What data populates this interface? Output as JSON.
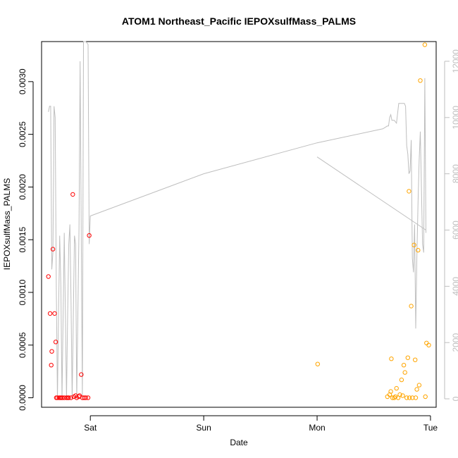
{
  "chart_data": {
    "type": "scatter",
    "title": "ATOM1 Northeast_Pacific IEPOXsulfMass_PALMS",
    "xlabel": "Date",
    "ylabel": "IEPOXsulfMass_PALMS",
    "x_axis": {
      "range_days": [
        -0.43,
        3.05
      ],
      "ticks": [
        {
          "value": 0,
          "label": "Sat"
        },
        {
          "value": 1,
          "label": "Sun"
        },
        {
          "value": 2,
          "label": "Mon"
        },
        {
          "value": 3,
          "label": "Tue"
        }
      ]
    },
    "y_left": {
      "range": [
        -9e-05,
        0.00338
      ],
      "ticks": [
        {
          "value": 0.0,
          "label": "0.0000"
        },
        {
          "value": 0.0005,
          "label": "0.0005"
        },
        {
          "value": 0.001,
          "label": "0.0010"
        },
        {
          "value": 0.0015,
          "label": "0.0015"
        },
        {
          "value": 0.002,
          "label": "0.0020"
        },
        {
          "value": 0.0025,
          "label": "0.0025"
        },
        {
          "value": 0.003,
          "label": "0.0030"
        }
      ]
    },
    "y_right": {
      "range": [
        -300,
        12700
      ],
      "ticks": [
        {
          "value": 0,
          "label": "0"
        },
        {
          "value": 2000,
          "label": "2000"
        },
        {
          "value": 4000,
          "label": "4000"
        },
        {
          "value": 6000,
          "label": "6000"
        },
        {
          "value": 8000,
          "label": "8000"
        },
        {
          "value": 10000,
          "label": "10000"
        },
        {
          "value": 12000,
          "label": "12000"
        }
      ]
    },
    "colors": {
      "series_red": "#ff0000",
      "series_orange": "#ffa500",
      "line": "#bebebe"
    },
    "series": [
      {
        "color": "#ff0000",
        "points": [
          [
            -0.37,
            0.00115
          ],
          [
            -0.355,
            0.0008
          ],
          [
            -0.345,
            0.00031
          ],
          [
            -0.34,
            0.00044
          ],
          [
            -0.33,
            0.00141
          ],
          [
            -0.315,
            0.0008
          ],
          [
            -0.305,
            0.00053
          ],
          [
            -0.3,
            0.0
          ],
          [
            -0.29,
            0.0
          ],
          [
            -0.275,
            0.0
          ],
          [
            -0.265,
            0.0
          ],
          [
            -0.255,
            0.0
          ],
          [
            -0.245,
            0.0
          ],
          [
            -0.23,
            0.0
          ],
          [
            -0.21,
            0.0
          ],
          [
            -0.2,
            0.0
          ],
          [
            -0.19,
            0.0
          ],
          [
            -0.17,
            0.0
          ],
          [
            -0.155,
            0.00193
          ],
          [
            -0.145,
            1e-05
          ],
          [
            -0.13,
            2e-05
          ],
          [
            -0.12,
            0.0
          ],
          [
            -0.1,
            1e-05
          ],
          [
            -0.095,
            2e-05
          ],
          [
            -0.08,
            0.00022
          ],
          [
            -0.07,
            0.0
          ],
          [
            -0.055,
            0.0
          ],
          [
            -0.04,
            0.0
          ],
          [
            -0.02,
            0.0
          ],
          [
            -0.01,
            0.00154
          ]
        ]
      },
      {
        "color": "#ffa500",
        "points": [
          [
            2.005,
            0.00032
          ],
          [
            2.62,
            1e-05
          ],
          [
            2.64,
            3e-05
          ],
          [
            2.65,
            6e-05
          ],
          [
            2.655,
            0.00037
          ],
          [
            2.665,
            0.0
          ],
          [
            2.68,
            0.0
          ],
          [
            2.69,
            1e-05
          ],
          [
            2.7,
            9e-05
          ],
          [
            2.715,
            0.0
          ],
          [
            2.73,
            3e-05
          ],
          [
            2.745,
            0.00017
          ],
          [
            2.755,
            2e-05
          ],
          [
            2.765,
            0.00031
          ],
          [
            2.775,
            0.00024
          ],
          [
            2.79,
            0.0
          ],
          [
            2.8,
            0.00038
          ],
          [
            2.81,
            0.00196
          ],
          [
            2.815,
            0.0
          ],
          [
            2.83,
            0.00087
          ],
          [
            2.84,
            0.0
          ],
          [
            2.855,
            0.00145
          ],
          [
            2.865,
            0.00036
          ],
          [
            2.87,
            0.0
          ],
          [
            2.88,
            8e-05
          ],
          [
            2.89,
            0.0014
          ],
          [
            2.9,
            0.00012
          ],
          [
            2.91,
            0.00301
          ],
          [
            2.95,
            0.00335
          ],
          [
            2.955,
            1e-05
          ],
          [
            2.965,
            0.00052
          ],
          [
            2.985,
            0.0005
          ]
        ]
      }
    ],
    "line_series": {
      "axis": "right",
      "segments": [
        [
          [
            -0.37,
            10200
          ],
          [
            -0.36,
            10400
          ],
          [
            -0.35,
            10400
          ],
          [
            -0.34,
            4600
          ],
          [
            -0.33,
            5200
          ],
          [
            -0.32,
            10400
          ],
          [
            -0.31,
            10000
          ],
          [
            -0.3,
            4000
          ],
          [
            -0.29,
            0
          ],
          [
            -0.28,
            3000
          ],
          [
            -0.27,
            5800
          ],
          [
            -0.26,
            4000
          ],
          [
            -0.25,
            0
          ],
          [
            -0.24,
            3000
          ],
          [
            -0.23,
            5900
          ],
          [
            -0.22,
            3000
          ],
          [
            -0.21,
            0
          ],
          [
            -0.2,
            3000
          ],
          [
            -0.19,
            5500
          ],
          [
            -0.18,
            6200
          ],
          [
            -0.17,
            3500
          ],
          [
            -0.16,
            0
          ],
          [
            -0.15,
            3000
          ],
          [
            -0.14,
            5800
          ],
          [
            -0.13,
            5500
          ],
          [
            -0.12,
            0
          ],
          [
            -0.11,
            3000
          ],
          [
            -0.1,
            6000
          ],
          [
            -0.09,
            12000
          ],
          [
            -0.08,
            6000
          ],
          [
            -0.07,
            0
          ],
          [
            -0.06,
            12700
          ],
          [
            -0.04,
            12700
          ],
          [
            -0.02,
            12600
          ],
          [
            -0.01,
            5500
          ],
          [
            0.0,
            6500
          ],
          [
            1.0,
            8000
          ],
          [
            2.0,
            9100
          ],
          [
            2.58,
            9600
          ],
          [
            2.62,
            9700
          ],
          [
            2.63,
            9700
          ],
          [
            2.64,
            10000
          ],
          [
            2.65,
            10100
          ],
          [
            2.66,
            9900
          ],
          [
            2.68,
            9900
          ],
          [
            2.7,
            9800
          ],
          [
            2.72,
            10500
          ],
          [
            2.75,
            10500
          ],
          [
            2.77,
            10500
          ],
          [
            2.78,
            10400
          ],
          [
            2.79,
            9000
          ],
          [
            2.8,
            8700
          ],
          [
            2.81,
            8000
          ],
          [
            2.82,
            8100
          ],
          [
            2.83,
            9200
          ],
          [
            2.84,
            5000
          ],
          [
            2.85,
            4500
          ],
          [
            2.86,
            6200
          ],
          [
            2.87,
            2500
          ],
          [
            2.88,
            5000
          ],
          [
            2.89,
            7000
          ],
          [
            2.9,
            8500
          ],
          [
            2.91,
            9500
          ],
          [
            2.93,
            5500
          ],
          [
            2.94,
            5200
          ],
          [
            2.95,
            11400
          ],
          [
            2.96,
            5900
          ]
        ],
        [
          [
            2.0,
            8600
          ],
          [
            2.96,
            6000
          ]
        ]
      ]
    }
  }
}
